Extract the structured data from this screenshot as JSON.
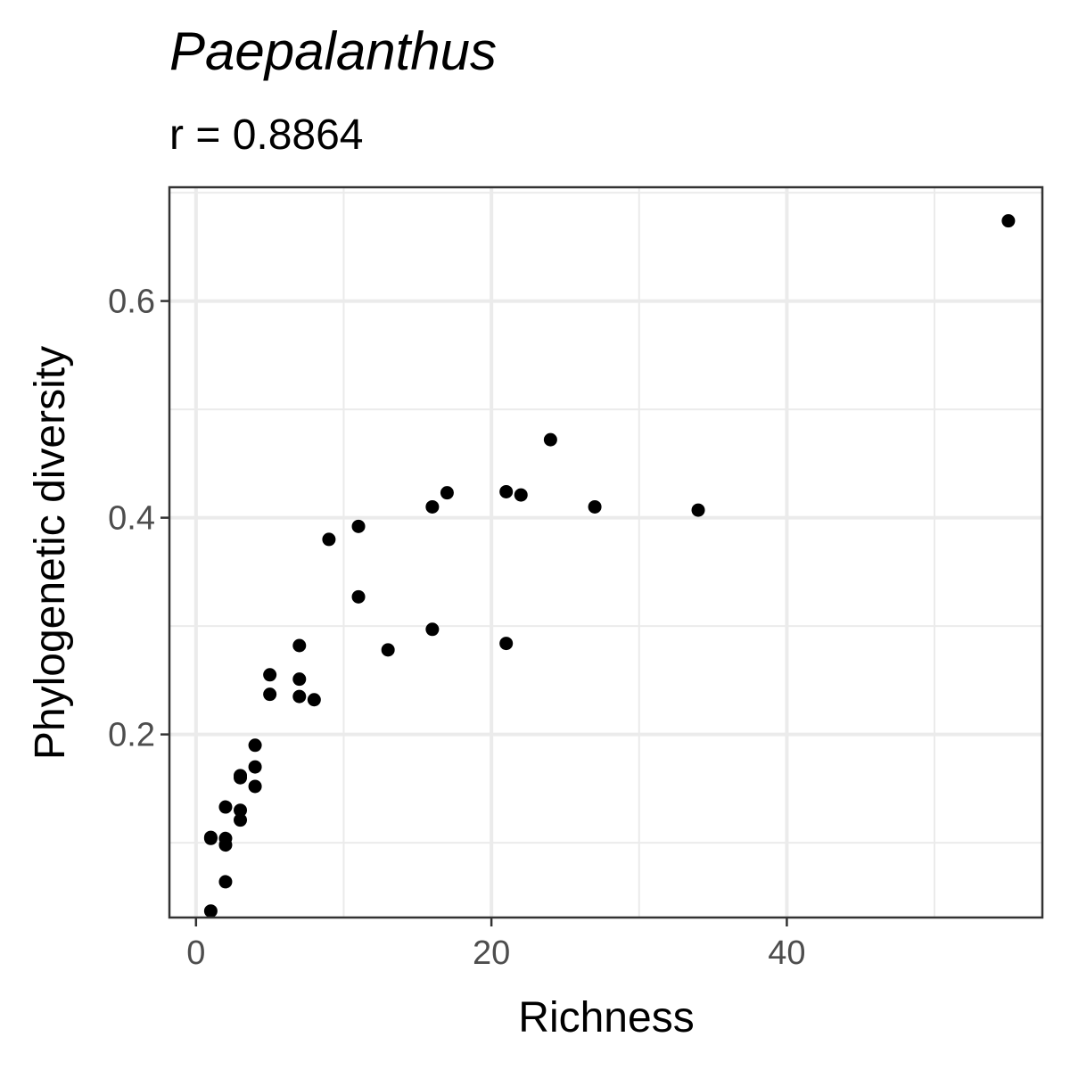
{
  "chart_data": {
    "type": "scatter",
    "title": "Paepalanthus",
    "subtitle": "r = 0.8864",
    "xlabel": "Richness",
    "ylabel": "Phylogenetic diversity",
    "xlim": [
      -1.8,
      57.3
    ],
    "ylim": [
      0.031,
      0.705
    ],
    "x_ticks": [
      0,
      20,
      40
    ],
    "x_tick_labels": [
      "0",
      "20",
      "40"
    ],
    "y_ticks": [
      0.2,
      0.4,
      0.6
    ],
    "y_tick_labels": [
      "0.2",
      "0.4",
      "0.6"
    ],
    "grid": true,
    "point_color": "#000000",
    "points": [
      {
        "x": 55,
        "y": 0.674
      },
      {
        "x": 24,
        "y": 0.472
      },
      {
        "x": 17,
        "y": 0.423
      },
      {
        "x": 21,
        "y": 0.424
      },
      {
        "x": 22,
        "y": 0.421
      },
      {
        "x": 16,
        "y": 0.41
      },
      {
        "x": 27,
        "y": 0.41
      },
      {
        "x": 34,
        "y": 0.407
      },
      {
        "x": 11,
        "y": 0.392
      },
      {
        "x": 9,
        "y": 0.38
      },
      {
        "x": 11,
        "y": 0.327
      },
      {
        "x": 16,
        "y": 0.297
      },
      {
        "x": 21,
        "y": 0.284
      },
      {
        "x": 7,
        "y": 0.282
      },
      {
        "x": 13,
        "y": 0.278
      },
      {
        "x": 5,
        "y": 0.255
      },
      {
        "x": 7,
        "y": 0.251
      },
      {
        "x": 5,
        "y": 0.237
      },
      {
        "x": 7,
        "y": 0.235
      },
      {
        "x": 8,
        "y": 0.232
      },
      {
        "x": 4,
        "y": 0.19
      },
      {
        "x": 4,
        "y": 0.17
      },
      {
        "x": 3,
        "y": 0.162
      },
      {
        "x": 3,
        "y": 0.16
      },
      {
        "x": 4,
        "y": 0.152
      },
      {
        "x": 2,
        "y": 0.133
      },
      {
        "x": 3,
        "y": 0.13
      },
      {
        "x": 3,
        "y": 0.121
      },
      {
        "x": 1,
        "y": 0.105
      },
      {
        "x": 1,
        "y": 0.104
      },
      {
        "x": 2,
        "y": 0.104
      },
      {
        "x": 2,
        "y": 0.098
      },
      {
        "x": 2,
        "y": 0.064
      },
      {
        "x": 1,
        "y": 0.037
      }
    ]
  }
}
